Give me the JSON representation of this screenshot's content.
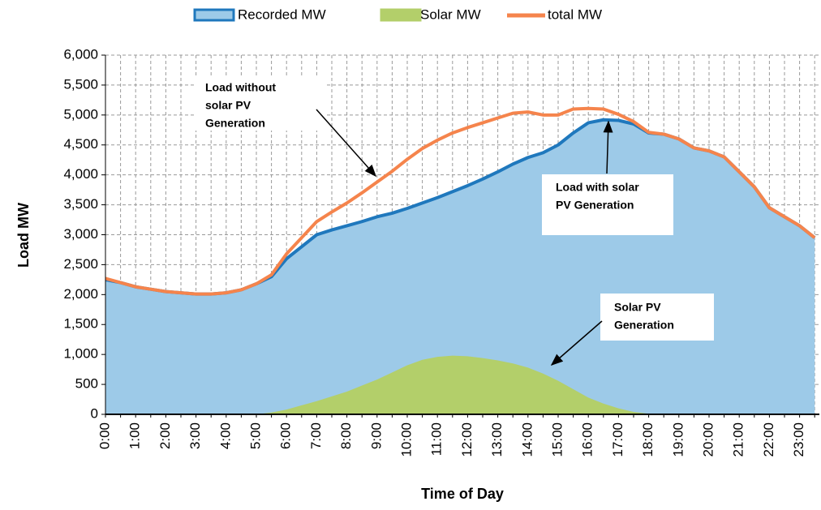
{
  "chart_data": {
    "type": "area",
    "x_label": "Time of Day",
    "y_label": "Load MW",
    "categories": [
      "0:00",
      null,
      "1:00",
      null,
      "2:00",
      null,
      "3:00",
      null,
      "4:00",
      null,
      "5:00",
      null,
      "6:00",
      null,
      "7:00",
      null,
      "8:00",
      null,
      "9:00",
      null,
      "10:00",
      null,
      "11:00",
      null,
      "12:00",
      null,
      "13:00",
      null,
      "14:00",
      null,
      "15:00",
      null,
      "16:00",
      null,
      "17:00",
      null,
      "18:00",
      null,
      "19:00",
      null,
      "20:00",
      null,
      "21:00",
      null,
      "22:00",
      null,
      "23:00",
      null
    ],
    "series": [
      {
        "name": "Recorded MW",
        "kind": "area",
        "color": "#9dcae8",
        "line_color": "#1f78bd",
        "values": [
          2250,
          2200,
          2130,
          2090,
          2050,
          2030,
          2010,
          2010,
          2030,
          2080,
          2180,
          2300,
          2600,
          2800,
          3000,
          3080,
          3150,
          3220,
          3300,
          3360,
          3440,
          3530,
          3620,
          3720,
          3820,
          3930,
          4050,
          4180,
          4290,
          4370,
          4500,
          4700,
          4870,
          4920,
          4910,
          4850,
          4700,
          4680,
          4600,
          4450,
          4400,
          4300,
          4050,
          3800,
          3450,
          3300,
          3150,
          2950
        ]
      },
      {
        "name": "Solar MW",
        "kind": "area",
        "color": "#b3cf6a",
        "line_color": "#b3cf6a",
        "values": [
          0,
          0,
          0,
          0,
          0,
          0,
          0,
          0,
          0,
          0,
          0,
          30,
          80,
          150,
          220,
          300,
          380,
          480,
          580,
          700,
          820,
          910,
          960,
          980,
          970,
          940,
          900,
          850,
          780,
          680,
          560,
          420,
          280,
          180,
          100,
          40,
          10,
          0,
          0,
          0,
          0,
          0,
          0,
          0,
          0,
          0,
          0,
          0
        ]
      },
      {
        "name": "total MW",
        "kind": "line",
        "color": "#f5844c",
        "line_color": "#f5844c",
        "values": [
          2270,
          2200,
          2130,
          2090,
          2050,
          2030,
          2010,
          2010,
          2030,
          2080,
          2180,
          2330,
          2680,
          2950,
          3220,
          3380,
          3530,
          3700,
          3880,
          4060,
          4260,
          4440,
          4580,
          4700,
          4790,
          4870,
          4950,
          5030,
          5050,
          5000,
          5000,
          5100,
          5110,
          5100,
          5010,
          4890,
          4710,
          4680,
          4600,
          4450,
          4400,
          4300,
          4050,
          3800,
          3450,
          3300,
          3150,
          2950
        ]
      }
    ],
    "ylim": [
      0,
      6000
    ],
    "yticks": [
      0,
      500,
      {
        "value": 1000,
        "label": "1,000"
      },
      {
        "value": 1500,
        "label": "1,500"
      },
      {
        "value": 2000,
        "label": "2,000"
      },
      {
        "value": 2500,
        "label": "2,500"
      },
      {
        "value": 3000,
        "label": "3,000"
      },
      {
        "value": 3500,
        "label": "3,500"
      },
      {
        "value": 4000,
        "label": "4,000"
      },
      {
        "value": 4500,
        "label": "4,500"
      },
      {
        "value": 5000,
        "label": "5,000"
      },
      {
        "value": 5500,
        "label": "5,500"
      },
      {
        "value": 6000,
        "label": "6,000"
      }
    ],
    "grid": true,
    "legend": "top",
    "annotations": [
      {
        "lines": [
          "Load without",
          "solar PV",
          "Generation"
        ]
      },
      {
        "lines": [
          "Load with solar",
          "PV Generation"
        ]
      },
      {
        "lines": [
          "Solar PV",
          "Generation"
        ]
      }
    ]
  }
}
